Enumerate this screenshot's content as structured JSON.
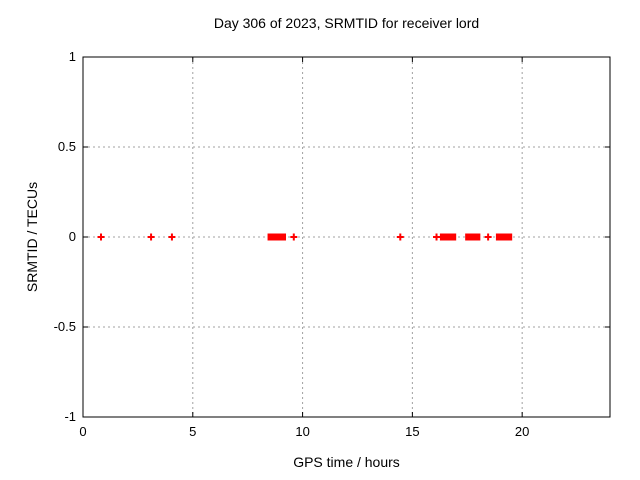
{
  "chart_data": {
    "type": "scatter",
    "title": "Day 306 of 2023, SRMTID for receiver lord",
    "xlabel": "GPS time / hours",
    "ylabel": "SRMTID / TECUs",
    "xlim": [
      0,
      24
    ],
    "ylim": [
      -1,
      1
    ],
    "xticks": [
      0,
      5,
      10,
      15,
      20
    ],
    "xtick_labels": [
      "0",
      "5",
      "10",
      "15",
      "20"
    ],
    "yticks": [
      1,
      0.5,
      0,
      -0.5,
      -1
    ],
    "ytick_labels": [
      "1",
      "0.5",
      "0",
      "-0.5",
      "-1"
    ],
    "grid": true,
    "legend": "none",
    "marker": "plus",
    "colors": {
      "marker": "#ff0000",
      "grid": "#a0a0a0",
      "axis": "#000000",
      "background": "#ffffff"
    },
    "series": [
      {
        "name": "SRMTID",
        "y_value": 0,
        "isolated_points_x": [
          0.82,
          3.1,
          4.05,
          9.6,
          14.45,
          16.1,
          18.45
        ],
        "dense_intervals_x": [
          [
            8.45,
            9.2
          ],
          [
            16.3,
            16.95
          ],
          [
            17.45,
            18.05
          ],
          [
            18.85,
            19.5
          ]
        ]
      }
    ]
  }
}
